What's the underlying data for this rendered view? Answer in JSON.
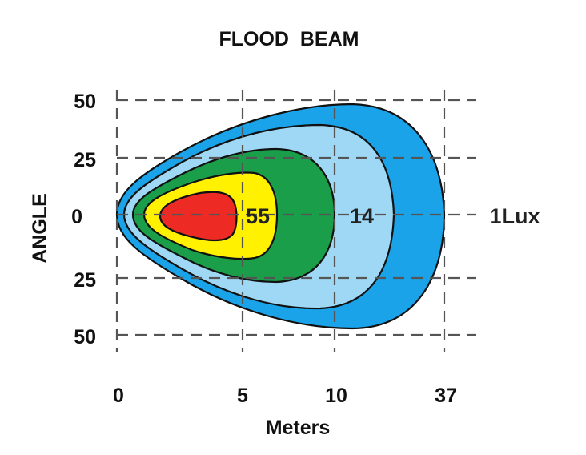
{
  "chart_data": {
    "type": "contour",
    "title": "FLOOD  BEAM",
    "xlabel": "Meters",
    "ylabel": "ANGLE",
    "x_ticks": [
      "0",
      "5",
      "10",
      "37"
    ],
    "y_ticks": [
      "50",
      "25",
      "0",
      "25",
      "50"
    ],
    "grid": true,
    "contour_labels": [
      "55",
      "14",
      "1Lux"
    ],
    "zones": [
      {
        "name": "outer-blue",
        "color": "#1aa3e8"
      },
      {
        "name": "light-blue",
        "color": "#9fd8f5"
      },
      {
        "name": "green",
        "color": "#1a9e4a"
      },
      {
        "name": "yellow",
        "color": "#fff100"
      },
      {
        "name": "red",
        "color": "#ee2a24"
      }
    ]
  }
}
